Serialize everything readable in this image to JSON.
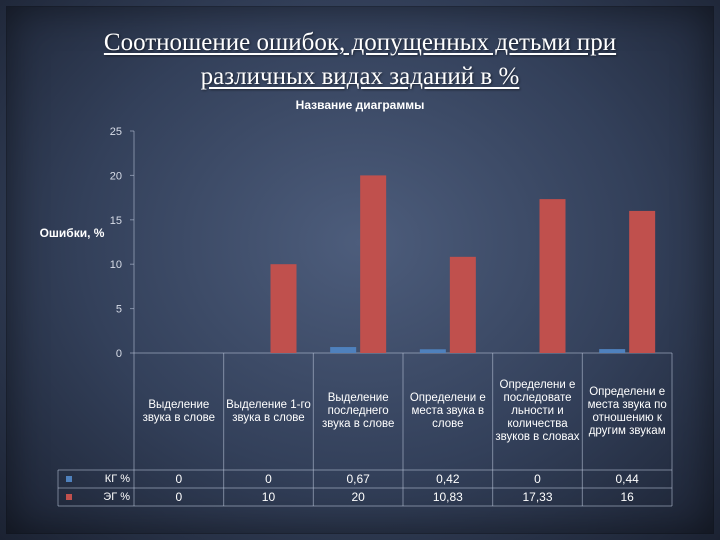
{
  "slide": {
    "title_line1": "Соотношение ошибок, допущенных детьми при",
    "title_line2": "различных видах заданий в %"
  },
  "chart_data": {
    "type": "bar",
    "title": "Название диаграммы",
    "ylabel": "Ошибки, %",
    "xlabel": "",
    "ylim": [
      0,
      25
    ],
    "yticks": [
      "0",
      "5",
      "10",
      "15",
      "20",
      "25"
    ],
    "categories": [
      "Выделение звука в слове",
      "Выделение 1-го звука в слове",
      "Выделение последнего звука в слове",
      "Определени е места звука в слове",
      "Определени е последовате льности и количества звуков в словах",
      "Определени е места звука по отношению к другим звукам"
    ],
    "series": [
      {
        "name": "КГ %",
        "color": "#4f81bd",
        "values": [
          0,
          0,
          0.67,
          0.42,
          0,
          0.44
        ],
        "labels": [
          "0",
          "0",
          "0,67",
          "0,42",
          "0",
          "0,44"
        ]
      },
      {
        "name": "ЭГ %",
        "color": "#c0504d",
        "values": [
          0,
          10,
          20,
          10.83,
          17.33,
          16
        ],
        "labels": [
          "0",
          "10",
          "20",
          "10,83",
          "17,33",
          "16"
        ]
      }
    ],
    "legend": "data-table-left",
    "grid": false
  }
}
